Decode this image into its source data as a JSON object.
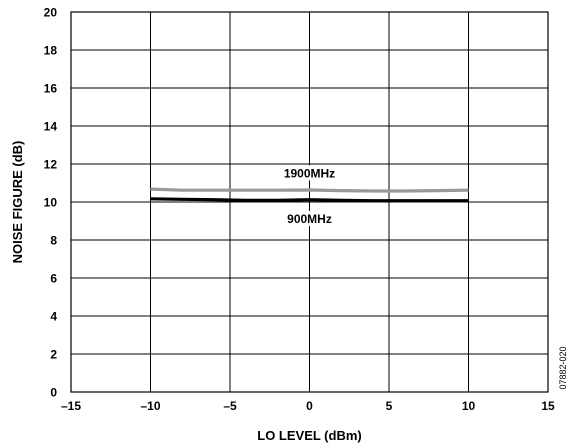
{
  "chart_data": {
    "type": "line",
    "xlabel": "LO LEVEL (dBm)",
    "ylabel": "NOISE FIGURE (dB)",
    "xlim": [
      -15,
      15
    ],
    "ylim": [
      0,
      20
    ],
    "xticks": [
      -15,
      -10,
      -5,
      0,
      5,
      10,
      15
    ],
    "yticks": [
      0,
      2,
      4,
      6,
      8,
      10,
      12,
      14,
      16,
      18,
      20
    ],
    "xtick_labels": [
      "–15",
      "–10",
      "–5",
      "0",
      "5",
      "10",
      "15"
    ],
    "ytick_labels": [
      "0",
      "2",
      "4",
      "6",
      "8",
      "10",
      "12",
      "14",
      "16",
      "18",
      "20"
    ],
    "grid": true,
    "series": [
      {
        "name": "1900MHz",
        "color": "#999999",
        "x": [
          -10,
          -8,
          -6,
          -4,
          -2,
          0,
          2,
          4,
          6,
          8,
          10
        ],
        "values": [
          10.68,
          10.62,
          10.62,
          10.62,
          10.62,
          10.63,
          10.6,
          10.58,
          10.58,
          10.6,
          10.62
        ]
      },
      {
        "name": "900MHz",
        "color": "#000000",
        "x": [
          -10,
          -8,
          -6,
          -4,
          -2,
          0,
          2,
          4,
          6,
          8,
          10
        ],
        "values": [
          10.17,
          10.14,
          10.12,
          10.09,
          10.09,
          10.12,
          10.09,
          10.07,
          10.07,
          10.07,
          10.07
        ]
      }
    ],
    "annotations": [
      {
        "text": "1900MHz",
        "series": 0
      },
      {
        "text": "900MHz",
        "series": 1
      }
    ],
    "side_note": "07882-020"
  }
}
